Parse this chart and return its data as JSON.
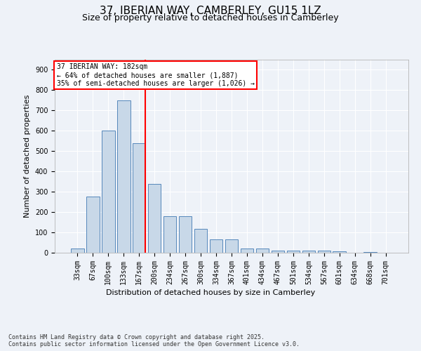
{
  "title_line1": "37, IBERIAN WAY, CAMBERLEY, GU15 1LZ",
  "title_line2": "Size of property relative to detached houses in Camberley",
  "xlabel": "Distribution of detached houses by size in Camberley",
  "ylabel": "Number of detached properties",
  "categories": [
    "33sqm",
    "67sqm",
    "100sqm",
    "133sqm",
    "167sqm",
    "200sqm",
    "234sqm",
    "267sqm",
    "300sqm",
    "334sqm",
    "367sqm",
    "401sqm",
    "434sqm",
    "467sqm",
    "501sqm",
    "534sqm",
    "567sqm",
    "601sqm",
    "634sqm",
    "668sqm",
    "701sqm"
  ],
  "values": [
    20,
    275,
    600,
    750,
    540,
    340,
    178,
    178,
    118,
    65,
    65,
    22,
    22,
    12,
    12,
    10,
    10,
    7,
    0,
    5,
    0
  ],
  "bar_color": "#c8d8e8",
  "bar_edge_color": "#5588bb",
  "vline_x_index": 4,
  "vline_color": "red",
  "annotation_box_text": "37 IBERIAN WAY: 182sqm\n← 64% of detached houses are smaller (1,887)\n35% of semi-detached houses are larger (1,026) →",
  "ylim": [
    0,
    950
  ],
  "yticks": [
    0,
    100,
    200,
    300,
    400,
    500,
    600,
    700,
    800,
    900
  ],
  "background_color": "#eef2f8",
  "plot_bg_color": "#eef2f8",
  "footer_text": "Contains HM Land Registry data © Crown copyright and database right 2025.\nContains public sector information licensed under the Open Government Licence v3.0.",
  "title_fontsize": 11,
  "subtitle_fontsize": 9,
  "axis_label_fontsize": 8,
  "tick_fontsize": 7,
  "annotation_fontsize": 7,
  "footer_fontsize": 6
}
